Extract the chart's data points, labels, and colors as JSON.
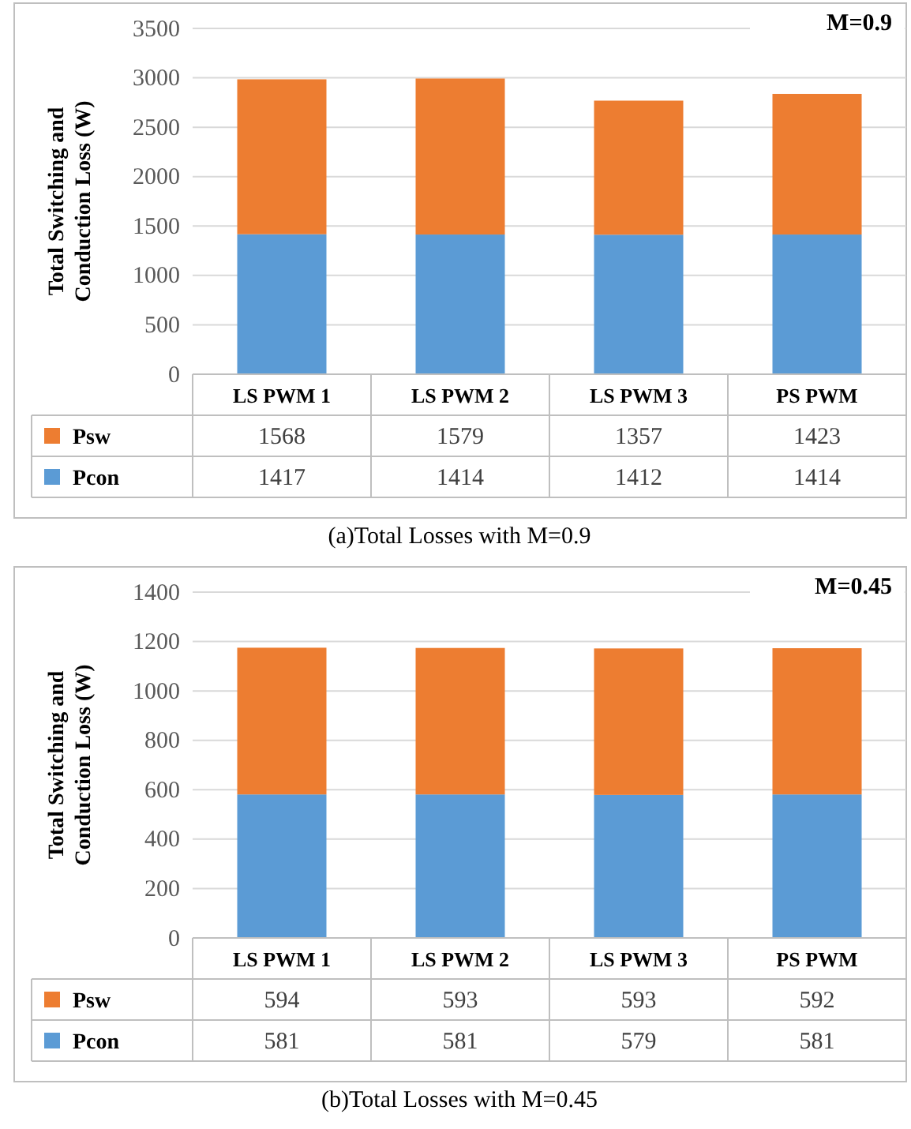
{
  "chart_data": [
    {
      "type": "bar",
      "stacked": true,
      "categories": [
        "LS PWM 1",
        "LS PWM 2",
        "LS PWM 3",
        "PS PWM"
      ],
      "series": [
        {
          "name": "Pcon",
          "color": "#5b9bd5",
          "values": [
            1417,
            1414,
            1412,
            1414
          ]
        },
        {
          "name": "Psw",
          "color": "#ed7d31",
          "values": [
            1568,
            1579,
            1357,
            1423
          ]
        }
      ],
      "ylabel": "Total Switching and Conduction Loss (W)",
      "ylim": [
        0,
        3500
      ],
      "yticks": [
        0,
        500,
        1000,
        1500,
        2000,
        2500,
        3000,
        3500
      ],
      "grid": "y",
      "data_labels": true,
      "legend": "bottom",
      "annotations": [
        "M=0.9",
        "(a)Total Losses with M=0.9"
      ]
    },
    {
      "type": "bar",
      "stacked": true,
      "categories": [
        "LS PWM 1",
        "LS PWM 2",
        "LS PWM 3",
        "PS PWM"
      ],
      "series": [
        {
          "name": "Pcon",
          "color": "#5b9bd5",
          "values": [
            581,
            581,
            579,
            581
          ]
        },
        {
          "name": "Psw",
          "color": "#ed7d31",
          "values": [
            594,
            593,
            593,
            592
          ]
        }
      ],
      "ylabel": "Total Switching and Conduction Loss (W)",
      "ylim": [
        0,
        1400
      ],
      "yticks": [
        0,
        200,
        400,
        600,
        800,
        1000,
        1200,
        1400
      ],
      "grid": "y",
      "data_labels": true,
      "legend": "bottom",
      "annotations": [
        "M=0.45",
        "(b)Total Losses with M=0.45"
      ]
    }
  ]
}
